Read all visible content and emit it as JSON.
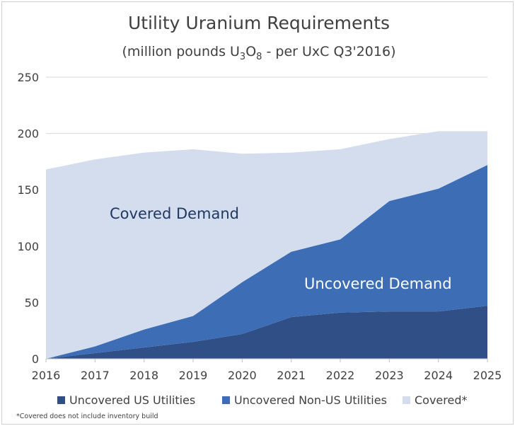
{
  "chart_data": {
    "type": "area",
    "stacked": true,
    "title": "Utility Uranium Requirements",
    "subtitle": {
      "before": "(million pounds U",
      "sub1": "3",
      "middle": "O",
      "sub2": "8",
      "after": " - per UxC Q3'2016)"
    },
    "x": [
      "2016",
      "2017",
      "2018",
      "2019",
      "2020",
      "2021",
      "2022",
      "2023",
      "2024",
      "2025"
    ],
    "series": [
      {
        "name": "Uncovered US Utilities",
        "color": "#2f4f86",
        "values": [
          0,
          5,
          10,
          15,
          22,
          37,
          41,
          42,
          42,
          47
        ]
      },
      {
        "name": "Uncovered Non-US Utilities",
        "color": "#3d6db5",
        "values": [
          0,
          6,
          16,
          23,
          46,
          58,
          65,
          98,
          109,
          125
        ]
      },
      {
        "name": "Covered*",
        "color": "#d4ddee",
        "values": [
          168,
          166,
          157,
          148,
          114,
          88,
          80,
          55,
          51,
          30
        ]
      }
    ],
    "ylim": [
      0,
      250
    ],
    "yticks": [
      0,
      50,
      100,
      150,
      200,
      250
    ],
    "grid": true,
    "legend_position": "bottom",
    "annotations": [
      {
        "text": "Covered Demand",
        "color": "#1f3864"
      },
      {
        "text": "Uncovered Demand",
        "color": "#ffffff"
      }
    ],
    "footnote": "*Covered does not include inventory build"
  }
}
